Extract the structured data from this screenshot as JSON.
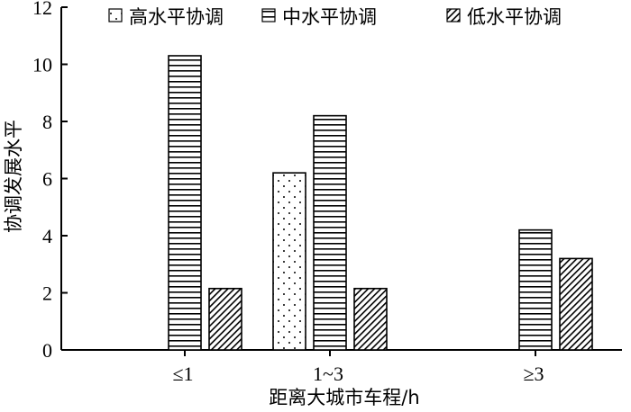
{
  "chart_data": {
    "type": "bar",
    "title": "",
    "xlabel": "距离大城市车程/h",
    "ylabel": "协调发展水平",
    "categories": [
      "≤1",
      "1~3",
      "≥3"
    ],
    "series": [
      {
        "name": "高水平协调",
        "pattern": "dots",
        "values": [
          0,
          6.2,
          0
        ]
      },
      {
        "name": "中水平协调",
        "pattern": "hlines",
        "values": [
          10.3,
          8.2,
          4.2
        ]
      },
      {
        "name": "低水平协调",
        "pattern": "diagonal",
        "values": [
          2.15,
          2.15,
          3.2
        ]
      }
    ],
    "ylim": [
      0,
      12
    ],
    "yticks": [
      0,
      2,
      4,
      6,
      8,
      10,
      12
    ],
    "legend_position": "top",
    "grid": false,
    "colors": {
      "axis": "#000000",
      "bar_fill": "#ffffff",
      "pattern": "#000000"
    }
  }
}
